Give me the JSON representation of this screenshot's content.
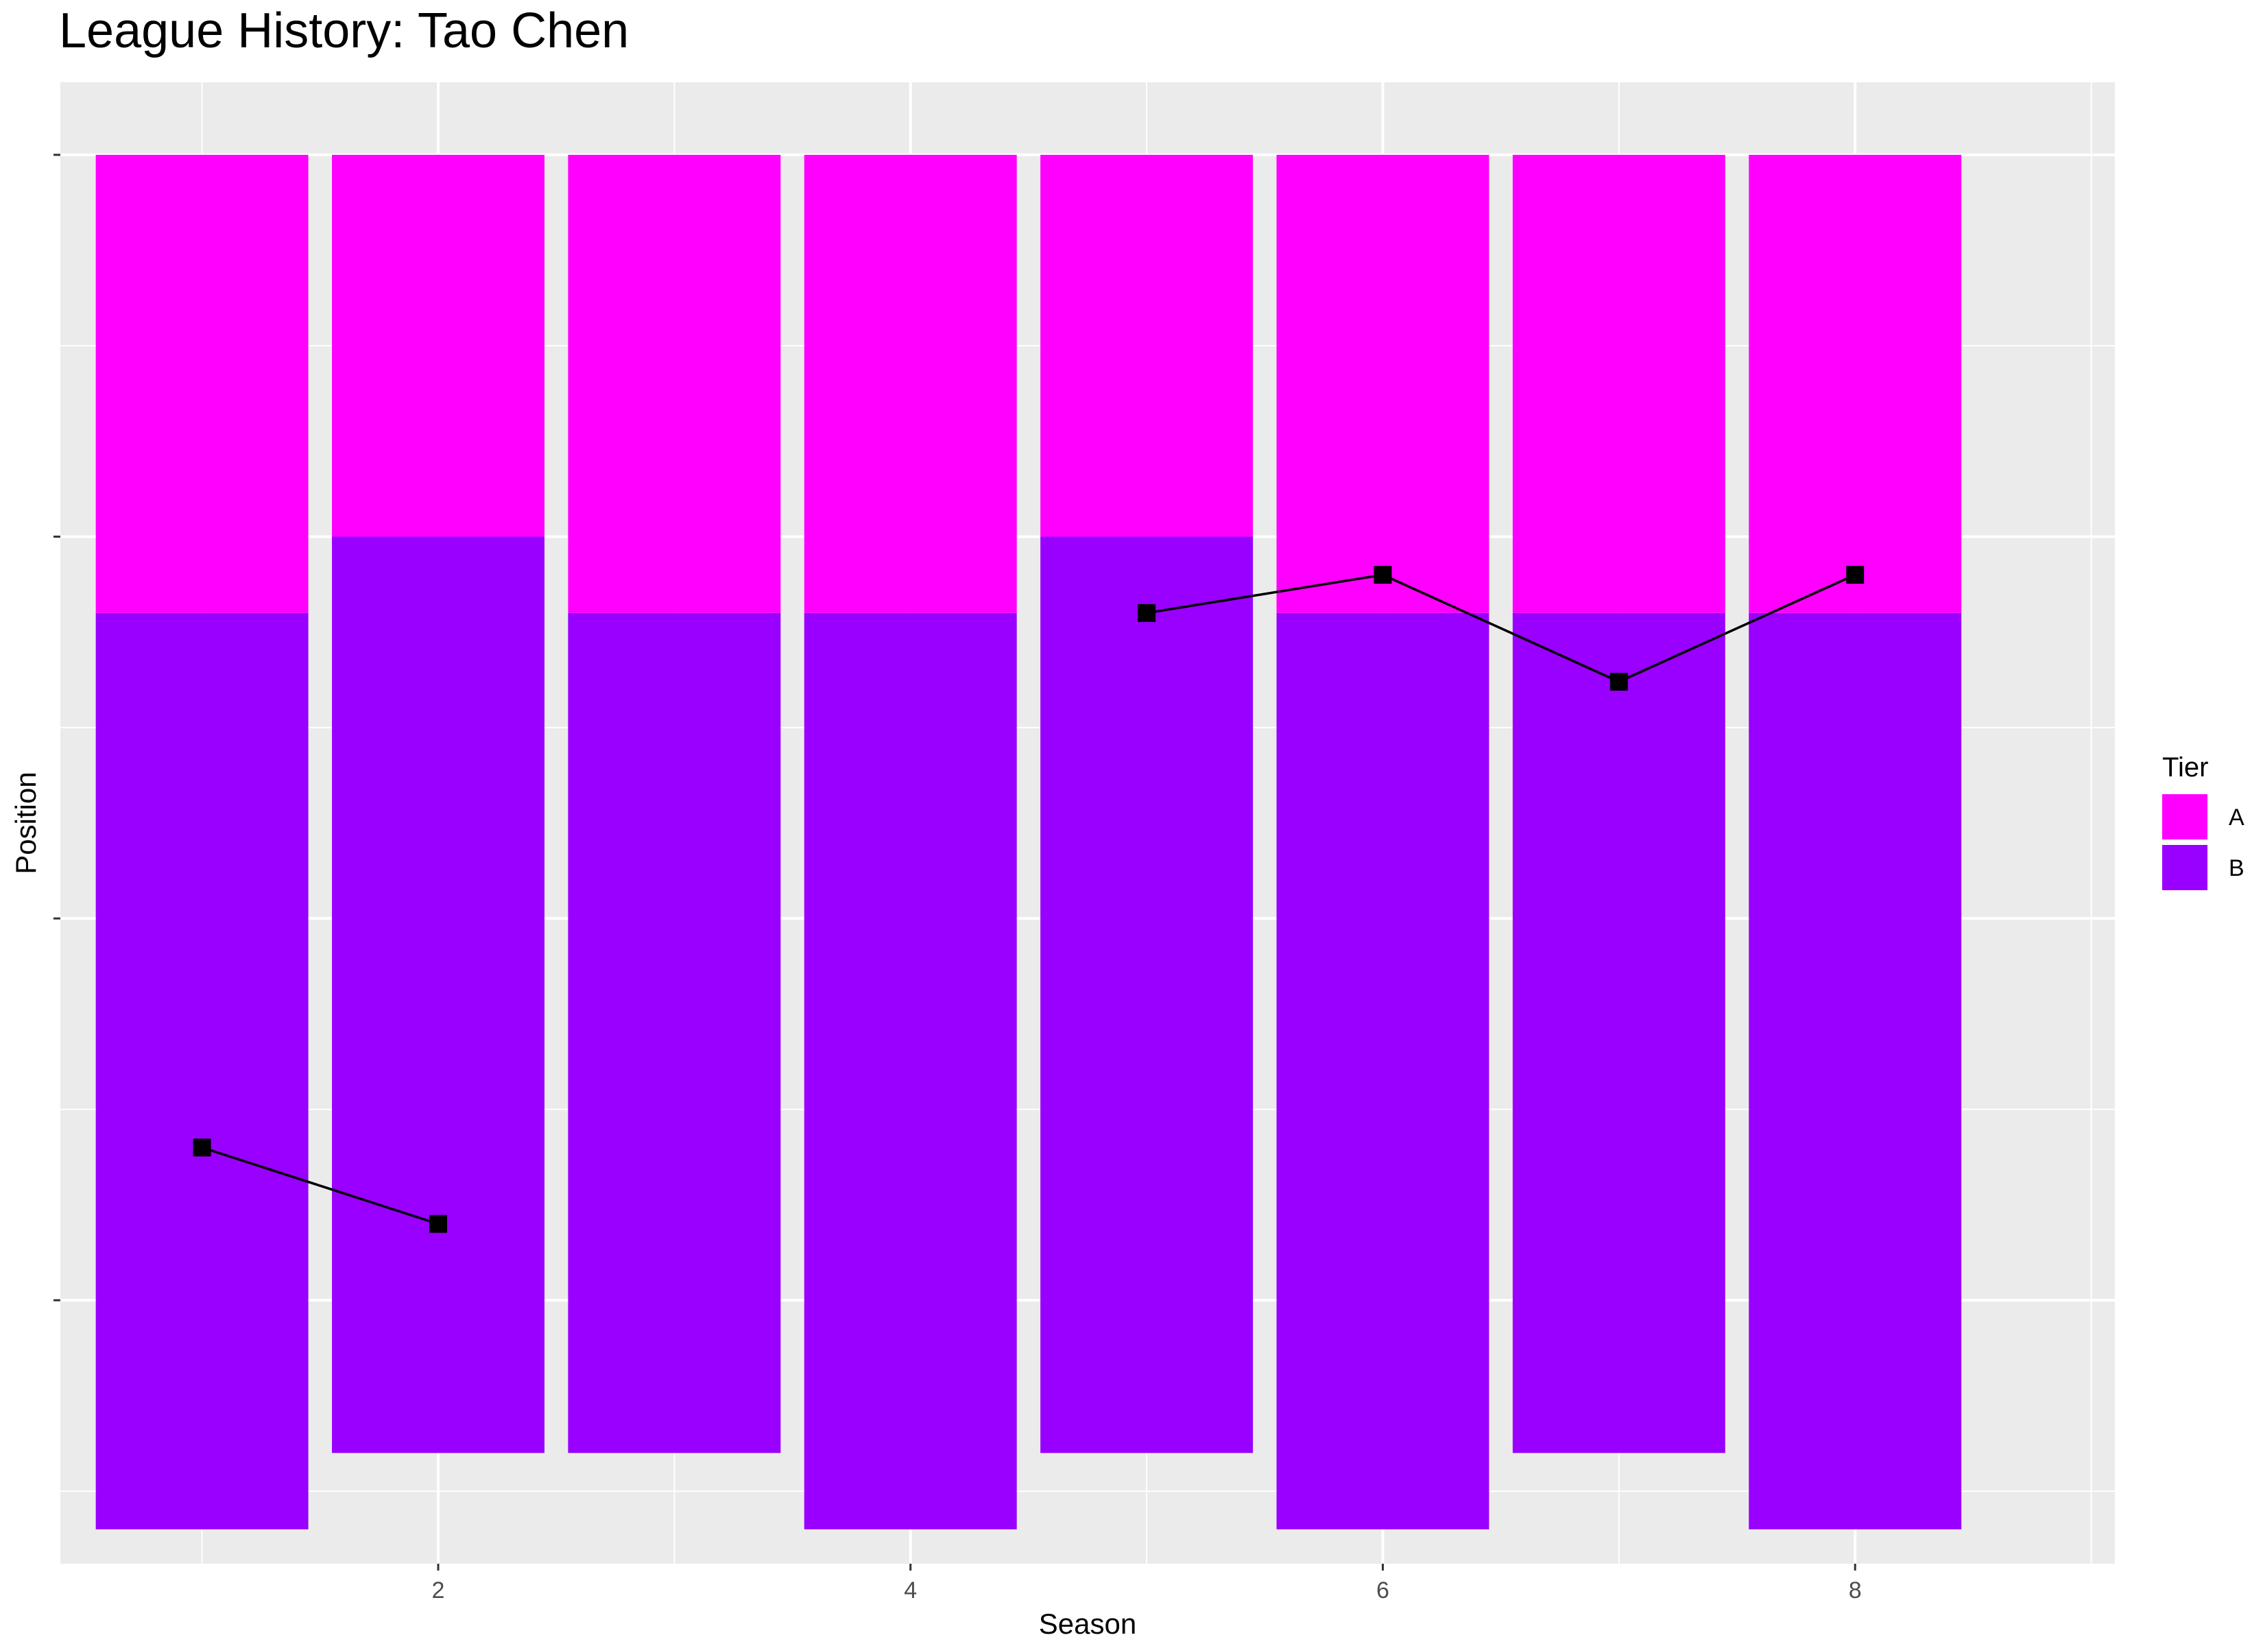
{
  "chart_data": {
    "type": "bar",
    "title": "League History: Tao Chen",
    "xlabel": "Season",
    "ylabel": "Position",
    "x_ticks": [
      2,
      4,
      6,
      8
    ],
    "xlim": [
      0.4,
      9.1
    ],
    "ylim": [
      0.6,
      39.4
    ],
    "y_reversed": true,
    "grid": true,
    "legend": {
      "title": "Tier",
      "placement": "right"
    },
    "tiers": [
      {
        "name": "A",
        "color": "#ff00ff"
      },
      {
        "name": "B",
        "color": "#9900ff"
      }
    ],
    "bars": [
      {
        "season": 1,
        "A_range": [
          2.5,
          14.5
        ],
        "B_range": [
          14.5,
          38.5
        ]
      },
      {
        "season": 2,
        "A_range": [
          2.5,
          12.5
        ],
        "B_range": [
          12.5,
          36.5
        ]
      },
      {
        "season": 3,
        "A_range": [
          2.5,
          14.5
        ],
        "B_range": [
          14.5,
          36.5
        ]
      },
      {
        "season": 4,
        "A_range": [
          2.5,
          14.5
        ],
        "B_range": [
          14.5,
          38.5
        ]
      },
      {
        "season": 5,
        "A_range": [
          2.5,
          12.5
        ],
        "B_range": [
          12.5,
          36.5
        ]
      },
      {
        "season": 6,
        "A_range": [
          2.5,
          14.5
        ],
        "B_range": [
          14.5,
          38.5
        ]
      },
      {
        "season": 7,
        "A_range": [
          2.5,
          14.5
        ],
        "B_range": [
          14.5,
          36.5
        ]
      },
      {
        "season": 8,
        "A_range": [
          2.5,
          14.5
        ],
        "B_range": [
          14.5,
          38.5
        ]
      }
    ],
    "series": [
      {
        "segments": [
          [
            {
              "season": 1,
              "position": 28.5
            },
            {
              "season": 2,
              "position": 30.5
            }
          ],
          [
            {
              "season": 5,
              "position": 14.5
            },
            {
              "season": 6,
              "position": 13.5
            },
            {
              "season": 7,
              "position": 16.3
            },
            {
              "season": 8,
              "position": 13.5
            }
          ]
        ],
        "line_color": "#000000",
        "marker": "square"
      }
    ]
  }
}
